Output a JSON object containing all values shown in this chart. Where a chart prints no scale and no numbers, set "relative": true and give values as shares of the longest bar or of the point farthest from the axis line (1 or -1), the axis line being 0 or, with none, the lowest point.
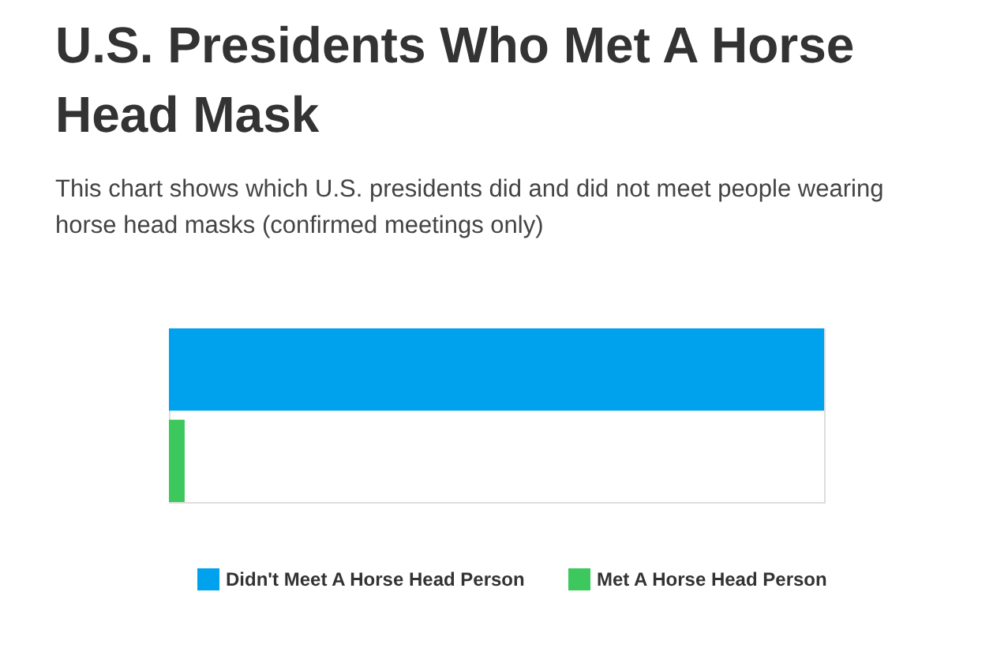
{
  "chart_data": {
    "type": "bar",
    "orientation": "horizontal",
    "relative": true,
    "stacked": true,
    "title": "U.S. Presidents Who Met A Horse Head Mask",
    "subtitle": "This chart shows which U.S. presidents did and did not meet people wearing horse head masks (confirmed meetings only)",
    "categories": [
      null,
      null
    ],
    "series": [
      {
        "name": "Didn't Meet A Horse Head Person",
        "color": "#00a2ed",
        "values": [
          1,
          null
        ]
      },
      {
        "name": "Met A Horse Head Person",
        "color": "#3cc85c",
        "values": [
          null,
          0.024
        ]
      }
    ],
    "legend": "bottom"
  }
}
